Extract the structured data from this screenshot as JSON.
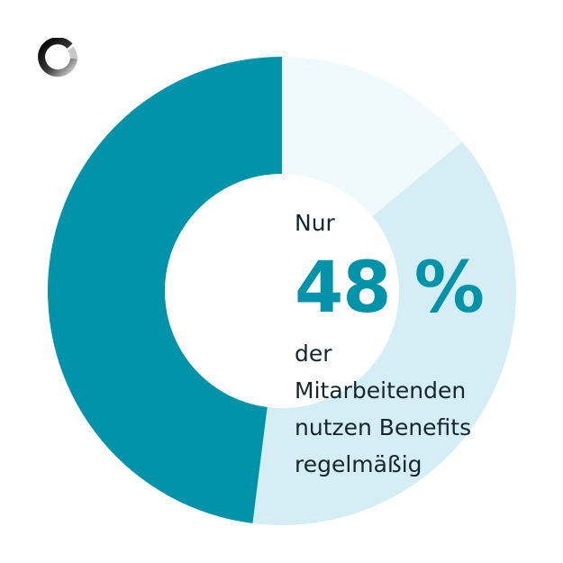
{
  "logo": {
    "icon": "ring-logo-icon"
  },
  "headline": {
    "prefix": "Nur",
    "value": "48 %",
    "description_lines": [
      "der",
      "Mitarbeitenden",
      "nutzen Benefits",
      "regelmäßig"
    ]
  },
  "colors": {
    "primary": "#0093a9",
    "secondary": "#d5eef6",
    "tertiary": "#f0f9fc",
    "text": "#15262d"
  },
  "chart_data": {
    "type": "pie",
    "variant": "donut",
    "title": "",
    "start_angle_deg": 0,
    "direction": "clockwise",
    "slices": [
      {
        "name": "segment-light",
        "value": 14,
        "color": "#f0f9fc"
      },
      {
        "name": "segment-medium",
        "value": 38,
        "color": "#d5eef6"
      },
      {
        "name": "segment-primary",
        "value": 48,
        "color": "#0093a9"
      }
    ],
    "highlighted_value": 48,
    "unit": "%"
  }
}
